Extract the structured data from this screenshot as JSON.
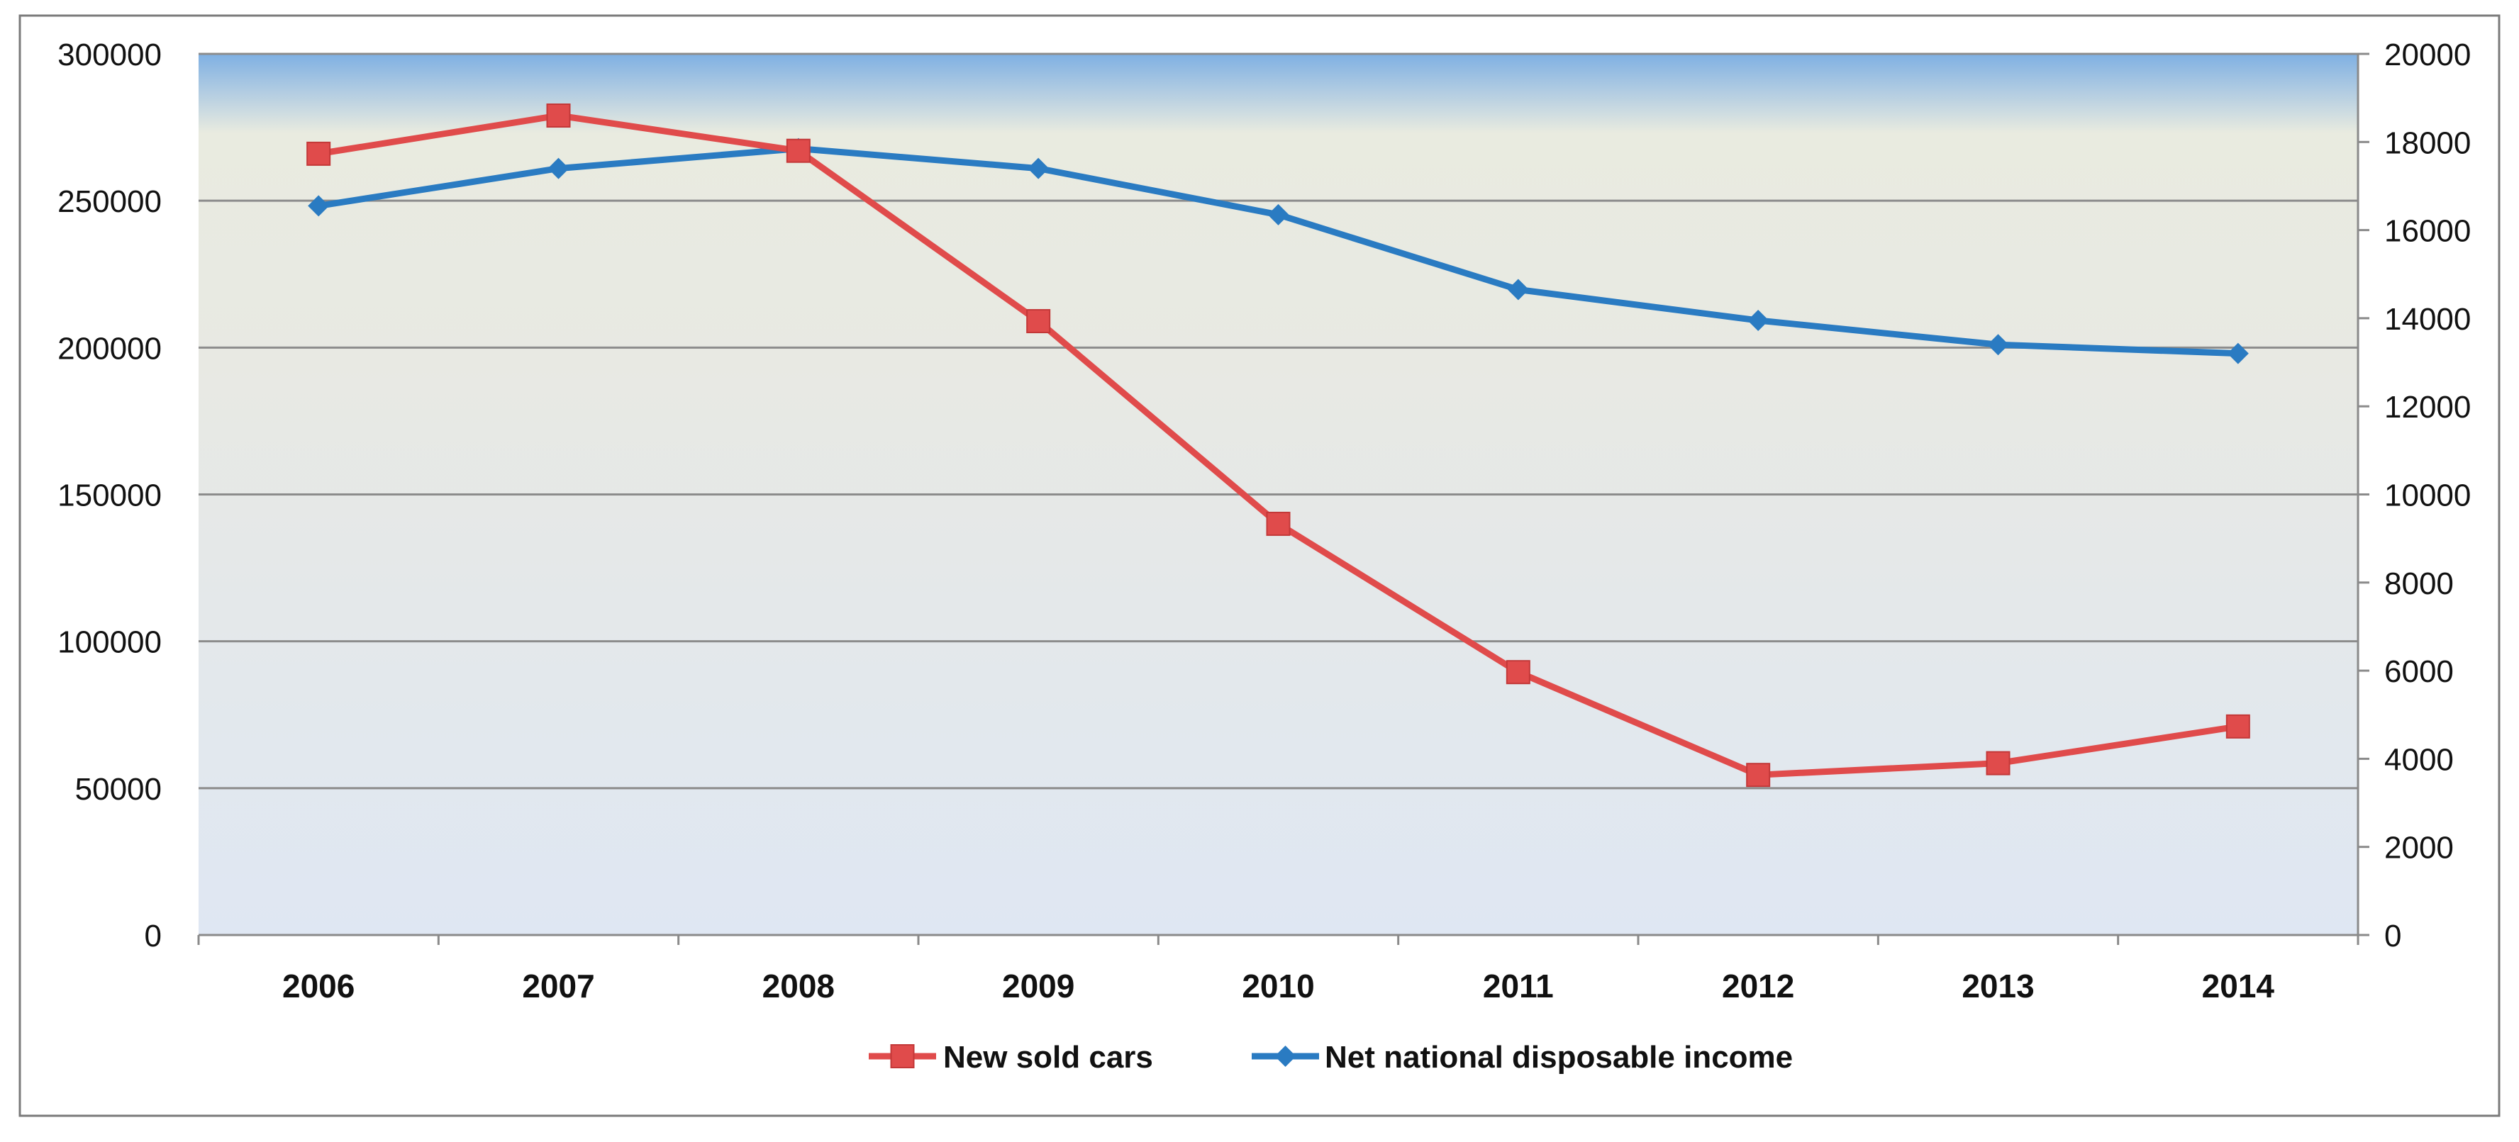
{
  "chart_data": {
    "type": "line",
    "title": "",
    "xlabel": "",
    "ylabel": "",
    "ylabel_right": "",
    "categories": [
      "2006",
      "2007",
      "2008",
      "2009",
      "2010",
      "2011",
      "2012",
      "2013",
      "2014"
    ],
    "series": [
      {
        "name": "New sold cars",
        "axis": "left",
        "marker": "square",
        "color": "#e04b4b",
        "values": [
          266000,
          279000,
          267000,
          209000,
          140000,
          89500,
          54500,
          58500,
          71000
        ]
      },
      {
        "name": "Net national disposable income",
        "axis": "right",
        "marker": "diamond",
        "color": "#2a7bc2",
        "values": [
          16550,
          17400,
          17850,
          17400,
          16350,
          14650,
          13950,
          13400,
          13200
        ]
      }
    ],
    "ylim_left": [
      0,
      300000
    ],
    "yticks_left": [
      "0",
      "50000",
      "100000",
      "150000",
      "200000",
      "250000",
      "300000"
    ],
    "ylim_right": [
      0,
      20000
    ],
    "yticks_right": [
      "0",
      "2000",
      "4000",
      "6000",
      "8000",
      "10000",
      "12000",
      "14000",
      "16000",
      "18000",
      "20000"
    ],
    "grid": true,
    "legend_position": "bottom-center",
    "colors": {
      "gridline": "#8c8c8c",
      "axis": "#8a8a8a",
      "frame": "#7a7a7a",
      "plot_top": "#7fb0e3",
      "plot_upper": "#eaeae2",
      "plot_bottom": "#dfe7f3"
    }
  }
}
